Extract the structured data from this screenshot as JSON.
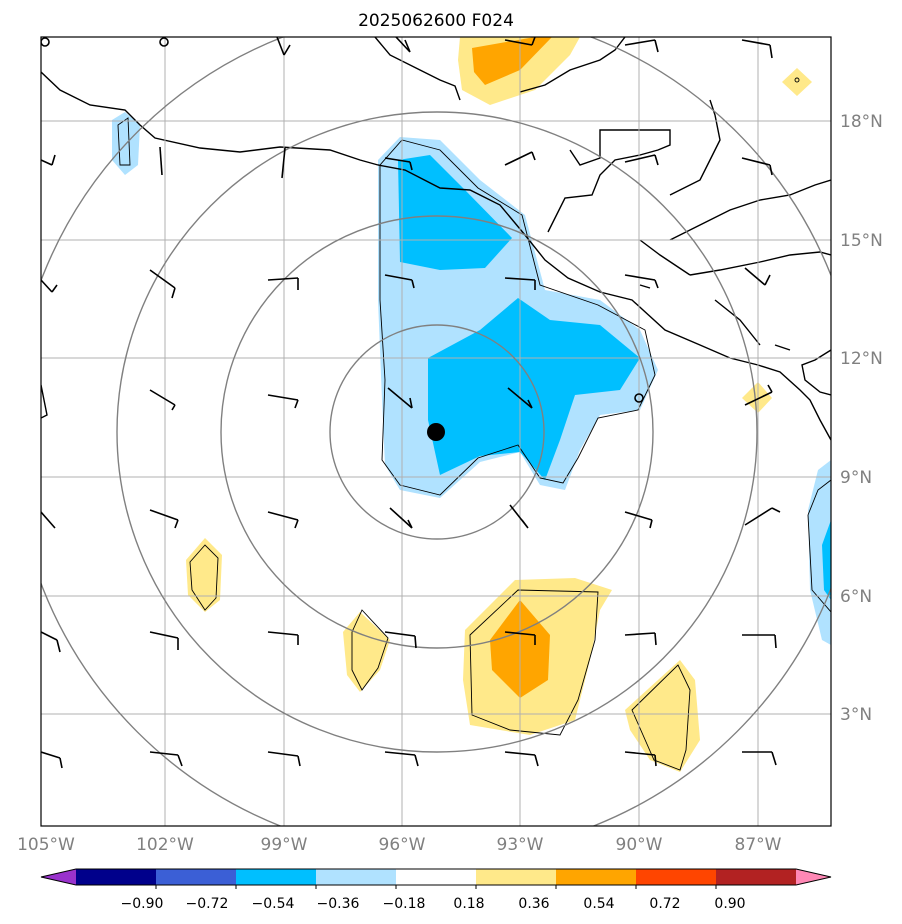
{
  "title": "2025062600 F024",
  "lon_labels": [
    "105°W",
    "102°W",
    "99°W",
    "96°W",
    "93°W",
    "90°W",
    "87°W"
  ],
  "lat_labels": [
    "18°N",
    "15°N",
    "12°N",
    "9°N",
    "6°N",
    "3°N"
  ],
  "colorbar": {
    "ticks": [
      "−0.90",
      "−0.72",
      "−0.54",
      "−0.36",
      "−0.18",
      "0.18",
      "0.36",
      "0.54",
      "0.72",
      "0.90"
    ],
    "colors": [
      "#9932cc",
      "#00008b",
      "#3b5fd6",
      "#00bfff",
      "#b0e2ff",
      "#ffffff",
      "#ffe98a",
      "#ffa500",
      "#ff4500",
      "#b22222",
      "#ff88b5"
    ]
  },
  "map": {
    "extent": {
      "lon": [
        -105,
        -85
      ],
      "lat": [
        0,
        20
      ]
    },
    "storm_center": {
      "lon": -95,
      "lat": 10
    }
  }
}
